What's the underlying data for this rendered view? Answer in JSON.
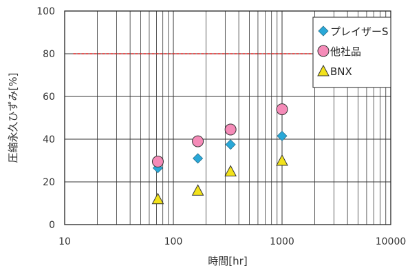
{
  "chart_data": {
    "type": "scatter",
    "xscale": "log",
    "xlim": [
      10,
      10000
    ],
    "ylim": [
      0,
      100
    ],
    "xticks": [
      10,
      100,
      1000,
      10000
    ],
    "xtick_labels": [
      "10",
      "100",
      "1000",
      "10000"
    ],
    "yticks": [
      0,
      20,
      40,
      60,
      80,
      100
    ],
    "ytick_labels": [
      "0",
      "20",
      "40",
      "60",
      "80",
      "100"
    ],
    "xlabel": "時間[hr]",
    "ylabel": "圧縮永久ひずみ[%]",
    "grid": true,
    "legend_position": "top-right",
    "reference_line": {
      "y": 80,
      "color": "#e02020",
      "style": "dashed"
    },
    "series": [
      {
        "name": "◆プレイザーS",
        "marker": "diamond",
        "color": "#29a8d8",
        "x": [
          72,
          168,
          336,
          1000
        ],
        "y": [
          26.5,
          31,
          37.5,
          41.5
        ]
      },
      {
        "name": "○他社品",
        "marker": "circle",
        "color": "#f58bb8",
        "x": [
          72,
          168,
          336,
          1000
        ],
        "y": [
          29.5,
          39,
          44.5,
          54
        ]
      },
      {
        "name": "△BNX",
        "marker": "triangle",
        "color": "#f2e21b",
        "x": [
          72,
          168,
          336,
          1000
        ],
        "y": [
          12,
          16,
          25,
          30
        ]
      }
    ]
  }
}
